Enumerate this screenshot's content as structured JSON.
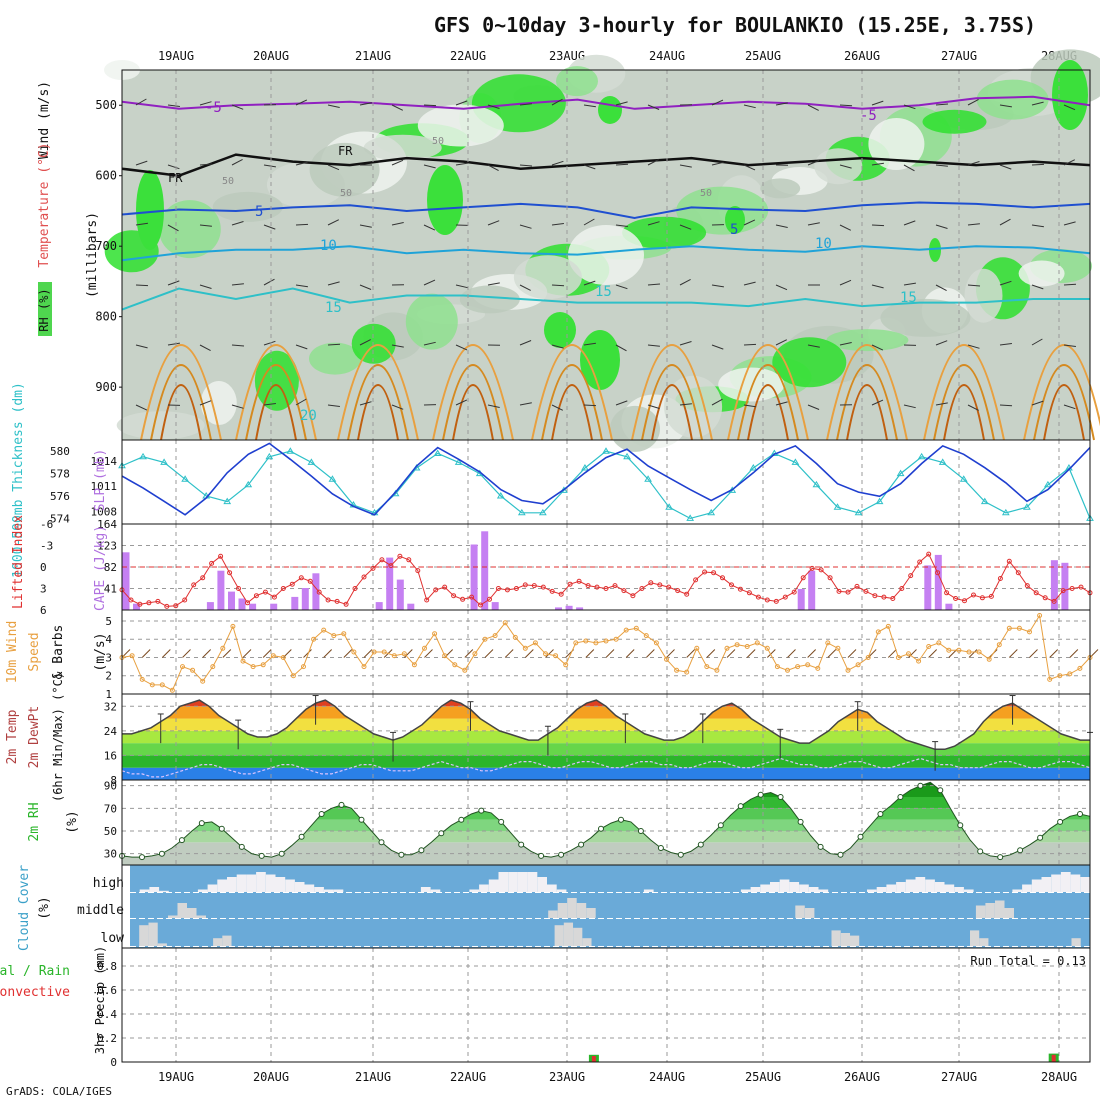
{
  "title": "GFS 0~10day 3-hourly for BOULANKIO (15.25E, 3.75S)",
  "footer": "GrADS: COLA/IGES",
  "dates": [
    "19AUG",
    "20AUG",
    "21AUG",
    "22AUG",
    "23AUG",
    "24AUG",
    "25AUG",
    "26AUG",
    "27AUG",
    "28AUG"
  ],
  "colors": {
    "temp_line": "#444444",
    "dewpt_line": "#a0522d",
    "thickness": "#2ec0c8",
    "slp": "#1f3fcf",
    "cape_bar": "#c580f2",
    "lifted_index": "#e03030",
    "wind_speed": "#e8a040",
    "rh": "#2bb52b",
    "cloud_bg": "#6aaad8",
    "cloud_fill": "#f2f0f4",
    "precip_total": "#2bb52b",
    "precip_conv": "#e03030"
  },
  "chart_data": [
    {
      "panel": "upper-air",
      "type": "heatmap",
      "ylabel": "(millibars)",
      "left_labels": [
        "RH (%)",
        "Temperature (°C)",
        "Wind (m/s)"
      ],
      "yticks": [
        500,
        600,
        700,
        800,
        900
      ],
      "ylim": [
        975,
        450
      ],
      "freezing_label": "FR",
      "contour_labels": [
        "-5",
        "5",
        "-5",
        "10",
        "15",
        "15",
        "5",
        "10",
        "15",
        "20",
        "50",
        "50",
        "50",
        "50"
      ],
      "isotherms": [
        {
          "level": "-5",
          "color": "#9020c0",
          "pressure": [
            495,
            505,
            500,
            498,
            495,
            500,
            505,
            498,
            492,
            505,
            500,
            495,
            498,
            505,
            500,
            490,
            488,
            500
          ]
        },
        {
          "level": "0",
          "color": "#111111",
          "pressure": [
            590,
            600,
            570,
            580,
            585,
            575,
            580,
            590,
            585,
            580,
            575,
            585,
            580,
            575,
            580,
            585,
            580,
            585
          ]
        },
        {
          "level": "5",
          "color": "#1f4fd0",
          "pressure": [
            655,
            648,
            650,
            645,
            642,
            650,
            645,
            640,
            645,
            660,
            645,
            648,
            650,
            642,
            638,
            640,
            645,
            640
          ]
        },
        {
          "level": "10",
          "color": "#1fa3d8",
          "pressure": [
            720,
            710,
            705,
            705,
            700,
            710,
            705,
            710,
            712,
            705,
            700,
            705,
            708,
            700,
            705,
            700,
            702,
            710
          ]
        },
        {
          "level": "15",
          "color": "#2ec0c8",
          "pressure": [
            790,
            760,
            775,
            760,
            780,
            770,
            770,
            775,
            780,
            780,
            780,
            785,
            775,
            785,
            780,
            780,
            775,
            775
          ]
        }
      ],
      "rh_scale": [
        "50",
        "60",
        "70",
        "80",
        "90"
      ]
    },
    {
      "panel": "thickness-slp",
      "type": "line",
      "left_labels": [
        "1000-500mb Thickness (dm)",
        "SLP (mb)"
      ],
      "yticks_thickness": [
        574,
        576,
        578,
        580
      ],
      "yticks_slp": [
        1008,
        1011,
        1014
      ],
      "ylim_thickness": [
        573.5,
        581
      ],
      "ylim_slp": [
        1006.5,
        1016.5
      ],
      "series": [
        {
          "name": "SLP (mb)",
          "values": [
            1012.2,
            1010.8,
            1009.2,
            1007.6,
            1009.6,
            1012.6,
            1014.8,
            1016.1,
            1014.2,
            1012.2,
            1010.1,
            1008.6,
            1007.6,
            1010.3,
            1013.4,
            1015.6,
            1014.2,
            1012.7,
            1010.6,
            1009.3,
            1008.9,
            1010.6,
            1012.6,
            1014.4,
            1015.4,
            1013.4,
            1012.0,
            1010.6,
            1009.3,
            1010.6,
            1012.6,
            1014.8,
            1015.8,
            1013.7,
            1011.3,
            1010.3,
            1009.8,
            1011.3,
            1013.7,
            1015.8,
            1014.8,
            1013.2,
            1011.4,
            1009.2,
            1010.6,
            1013.0,
            1015.6
          ]
        },
        {
          "name": "1000-500mb Thickness (dm)",
          "values": [
            578.7,
            579.5,
            579.0,
            577.5,
            576.0,
            575.5,
            577.0,
            579.5,
            580.0,
            579.0,
            577.5,
            575.2,
            574.5,
            576.2,
            578.5,
            579.8,
            579.0,
            578.0,
            576.0,
            574.5,
            574.5,
            576.5,
            578.5,
            580.0,
            579.5,
            577.5,
            575.0,
            574.0,
            574.5,
            576.5,
            578.5,
            579.8,
            579.0,
            577.0,
            575.0,
            574.5,
            575.5,
            578.0,
            579.5,
            579.0,
            577.5,
            575.5,
            574.5,
            575.0,
            577.0,
            578.5,
            574.0
          ]
        }
      ]
    },
    {
      "panel": "cape-li",
      "type": "bar",
      "left_labels": [
        "Lifted Index",
        "CAPE (J/kg)"
      ],
      "yticks_li": [
        6,
        3,
        0,
        -3,
        -6
      ],
      "yticks_cape": [
        41,
        82,
        123,
        164
      ],
      "ylim_cape": [
        0,
        164
      ],
      "cape_values": [
        110,
        12,
        0,
        0,
        0,
        0,
        0,
        0,
        15,
        75,
        35,
        22,
        12,
        0,
        12,
        0,
        25,
        42,
        70,
        0,
        0,
        0,
        0,
        0,
        15,
        100,
        58,
        12,
        0,
        0,
        0,
        0,
        0,
        125,
        150,
        15,
        0,
        0,
        0,
        0,
        0,
        5,
        8,
        5,
        0,
        0,
        0,
        0,
        0,
        0,
        0,
        0,
        0,
        0,
        0,
        0,
        0,
        0,
        0,
        0,
        0,
        0,
        0,
        0,
        40,
        75,
        0,
        0,
        0,
        0,
        0,
        0,
        0,
        0,
        0,
        0,
        85,
        105,
        12,
        0,
        0,
        0,
        0,
        0,
        0,
        0,
        0,
        0,
        95,
        90,
        0,
        0
      ],
      "li_values": [
        3.2,
        4.6,
        5.2,
        5.0,
        4.8,
        5.5,
        5.4,
        4.6,
        2.5,
        1.5,
        -0.5,
        -1.5,
        0.8,
        3.0,
        5.0,
        4.0,
        3.5,
        4.2,
        3.0,
        2.4,
        1.5,
        2.0,
        3.5,
        4.6,
        4.8,
        5.2,
        3.0,
        1.4,
        0.2,
        -1.0,
        -0.2,
        -1.5,
        -1.0,
        0.5,
        4.6,
        3.2,
        2.8,
        4.0,
        4.5,
        4.2,
        5.3,
        4.5,
        3.0,
        3.2,
        3.0,
        2.5,
        2.6,
        2.8,
        3.4,
        3.8,
        2.4,
        2.0,
        2.6,
        2.8,
        3.0,
        2.6,
        3.3,
        4.0,
        3.0,
        2.2,
        2.5,
        2.8,
        3.3,
        3.8,
        1.8,
        0.7,
        0.8,
        1.5,
        2.5,
        3.1,
        3.6,
        4.2,
        4.6,
        4.8,
        4.2,
        3.5,
        1.5,
        0.2,
        0.4,
        1.5,
        3.4,
        3.5,
        2.7,
        3.4,
        4.0,
        4.2,
        4.4,
        3.0,
        1.2,
        -0.7,
        -1.8,
        0.8,
        3.6,
        4.4,
        4.7,
        3.9,
        4.3,
        4.1,
        1.6,
        -0.8,
        0.8,
        2.6,
        3.6,
        4.3,
        4.8,
        3.3,
        3.0,
        2.8,
        3.6
      ]
    },
    {
      "panel": "wind10m",
      "type": "line",
      "left_labels": [
        "10m Wind Speed & Barbs",
        "(m/s)"
      ],
      "yticks": [
        1,
        2,
        3,
        4,
        5
      ],
      "ylim": [
        1,
        5.6
      ],
      "values": [
        3.0,
        3.1,
        1.8,
        1.5,
        1.5,
        1.2,
        2.5,
        2.3,
        1.7,
        2.5,
        3.5,
        4.7,
        2.8,
        2.5,
        2.6,
        3.1,
        3.0,
        2.0,
        2.5,
        4.0,
        4.5,
        4.2,
        4.3,
        3.3,
        2.5,
        3.3,
        3.3,
        3.1,
        3.2,
        2.6,
        3.5,
        4.3,
        3.1,
        2.6,
        2.3,
        3.2,
        4.0,
        4.2,
        4.9,
        4.1,
        3.5,
        3.8,
        3.2,
        3.1,
        2.6,
        3.8,
        3.9,
        3.8,
        3.9,
        4.0,
        4.5,
        4.6,
        4.2,
        3.8,
        2.9,
        2.3,
        2.2,
        3.5,
        2.5,
        2.3,
        3.5,
        3.7,
        3.6,
        3.8,
        3.5,
        2.5,
        2.3,
        2.5,
        2.6,
        2.4,
        3.8,
        3.5,
        2.3,
        2.6,
        3.0,
        4.4,
        4.7,
        3.0,
        3.2,
        2.8,
        3.6,
        3.8,
        3.4,
        3.4,
        3.3,
        3.3,
        2.9,
        3.7,
        4.6,
        4.6,
        4.4,
        5.3,
        1.8,
        2.0,
        2.1,
        2.4,
        3.0
      ]
    },
    {
      "panel": "temp",
      "type": "area",
      "left_labels": [
        "2m Temp",
        "2m DewPt",
        "(6hr Min/Max) (°C)"
      ],
      "yticks": [
        8,
        16,
        24,
        32
      ],
      "ylim": [
        8,
        36
      ],
      "temp_values": [
        23,
        23,
        24,
        25,
        27,
        29,
        32,
        33,
        34,
        32,
        29,
        27,
        25,
        23,
        22,
        22,
        23,
        25,
        28,
        31,
        33,
        34,
        32,
        29,
        27,
        25,
        23,
        22,
        21,
        22,
        24,
        26,
        29,
        32,
        34,
        33,
        31,
        28,
        26,
        24,
        23,
        22,
        21,
        21,
        23,
        25,
        28,
        31,
        33,
        34,
        32,
        29,
        27,
        25,
        23,
        22,
        21,
        21,
        22,
        24,
        27,
        30,
        32,
        33,
        31,
        28,
        26,
        24,
        22,
        21,
        20,
        20,
        22,
        24,
        27,
        29,
        31,
        30,
        27,
        25,
        23,
        21,
        20,
        19,
        18,
        18,
        19,
        21,
        23,
        27,
        30,
        32,
        33,
        31,
        29,
        27,
        25,
        23,
        22,
        21,
        21
      ],
      "dewpt_values": [
        11,
        10,
        10,
        9,
        9,
        10,
        11,
        12,
        13,
        13,
        12,
        11,
        10,
        10,
        11,
        12,
        13,
        13,
        12,
        11,
        10,
        10,
        11,
        12,
        13,
        13,
        12,
        11,
        11,
        11,
        12,
        13,
        14,
        13,
        12,
        12,
        11,
        11,
        12,
        13,
        14,
        14,
        13,
        12,
        12,
        13,
        14,
        14,
        13,
        12,
        12,
        13,
        14,
        14,
        13,
        13,
        12,
        12,
        13,
        14,
        14,
        13,
        12,
        12,
        13,
        14,
        15,
        14,
        13,
        13,
        12,
        12,
        13,
        14,
        14,
        13,
        12,
        12,
        13,
        14,
        15,
        14,
        13,
        13,
        12,
        12,
        12,
        13,
        14,
        14,
        13,
        12,
        12,
        13,
        14,
        14,
        13,
        12
      ]
    },
    {
      "panel": "rh2m",
      "type": "area",
      "left_labels": [
        "2m RH",
        "(%)"
      ],
      "yticks": [
        30,
        50,
        70,
        90
      ],
      "ylim": [
        20,
        95
      ],
      "values": [
        28,
        27,
        27,
        28,
        30,
        35,
        42,
        50,
        57,
        58,
        52,
        44,
        36,
        30,
        28,
        27,
        30,
        37,
        45,
        55,
        65,
        70,
        73,
        70,
        60,
        50,
        40,
        33,
        29,
        29,
        33,
        40,
        48,
        55,
        60,
        65,
        68,
        66,
        58,
        48,
        38,
        32,
        28,
        27,
        29,
        33,
        38,
        44,
        52,
        57,
        60,
        58,
        50,
        42,
        35,
        31,
        29,
        32,
        38,
        46,
        55,
        64,
        72,
        78,
        82,
        84,
        80,
        70,
        58,
        46,
        36,
        30,
        29,
        35,
        45,
        55,
        65,
        72,
        80,
        86,
        90,
        93,
        86,
        70,
        55,
        42,
        32,
        28,
        27,
        29,
        33,
        38,
        44,
        52,
        58,
        63,
        65,
        63
      ]
    },
    {
      "panel": "cloud",
      "type": "bar",
      "left_labels": [
        "Cloud Cover",
        "(%)"
      ],
      "row_labels": [
        "high",
        "middle",
        "low"
      ],
      "high": [
        0,
        10,
        20,
        5,
        0,
        0,
        0,
        10,
        30,
        50,
        60,
        70,
        70,
        80,
        70,
        60,
        50,
        40,
        30,
        20,
        10,
        10,
        0,
        0,
        0,
        0,
        0,
        0,
        0,
        0,
        20,
        10,
        0,
        0,
        0,
        10,
        30,
        50,
        80,
        80,
        80,
        80,
        60,
        30,
        10,
        0,
        0,
        0,
        0,
        0,
        0,
        0,
        0,
        10,
        0,
        0,
        0,
        0,
        0,
        0,
        0,
        0,
        0,
        10,
        20,
        30,
        40,
        50,
        40,
        30,
        20,
        10,
        0,
        0,
        0,
        0,
        10,
        20,
        30,
        40,
        50,
        60,
        50,
        40,
        30,
        20,
        10,
        0,
        0,
        0,
        0,
        10,
        30,
        50,
        60,
        70,
        80,
        70,
        60
      ],
      "middle": [
        0,
        0,
        0,
        0,
        10,
        60,
        40,
        10,
        0,
        0,
        0,
        0,
        0,
        0,
        0,
        0,
        0,
        0,
        0,
        0,
        0,
        0,
        0,
        0,
        0,
        0,
        0,
        0,
        0,
        0,
        0,
        0,
        0,
        0,
        0,
        0,
        0,
        0,
        0,
        0,
        0,
        0,
        0,
        0,
        30,
        60,
        80,
        60,
        40,
        0,
        0,
        0,
        0,
        0,
        0,
        0,
        0,
        0,
        0,
        0,
        0,
        0,
        0,
        0,
        0,
        0,
        0,
        0,
        0,
        0,
        50,
        40,
        0,
        0,
        0,
        0,
        0,
        0,
        0,
        0,
        0,
        0,
        0,
        0,
        0,
        0,
        0,
        0,
        0,
        50,
        60,
        70,
        40,
        0,
        0,
        0,
        0,
        0,
        0,
        0,
        0
      ],
      "low": [
        0,
        80,
        90,
        10,
        0,
        0,
        0,
        0,
        0,
        30,
        40,
        0,
        0,
        0,
        0,
        0,
        0,
        0,
        0,
        0,
        0,
        0,
        0,
        0,
        0,
        0,
        0,
        0,
        0,
        0,
        0,
        0,
        0,
        0,
        0,
        0,
        0,
        0,
        0,
        0,
        0,
        0,
        0,
        0,
        0,
        0,
        80,
        90,
        70,
        30,
        0,
        0,
        0,
        0,
        0,
        0,
        0,
        0,
        0,
        0,
        0,
        0,
        0,
        0,
        0,
        0,
        0,
        0,
        0,
        0,
        0,
        0,
        0,
        0,
        0,
        0,
        60,
        50,
        40,
        0,
        0,
        0,
        0,
        0,
        0,
        0,
        0,
        0,
        0,
        0,
        0,
        60,
        30,
        0,
        0,
        0,
        0,
        0,
        0,
        0,
        0,
        0,
        30,
        0
      ]
    },
    {
      "panel": "precip",
      "type": "bar",
      "left_labels": [
        "Total / Rain",
        "Convective"
      ],
      "ylabel": "3hr Precip (mm)",
      "yticks": [
        0,
        0.2,
        0.4,
        0.6,
        0.8
      ],
      "ylim": [
        0,
        0.95
      ],
      "run_total_label": "Run Total = 0.13",
      "events": [
        {
          "time_index": 39,
          "total": 0.06,
          "convective": 0.05
        },
        {
          "time_index": 77,
          "total": 0.07,
          "convective": 0.06
        }
      ]
    }
  ]
}
